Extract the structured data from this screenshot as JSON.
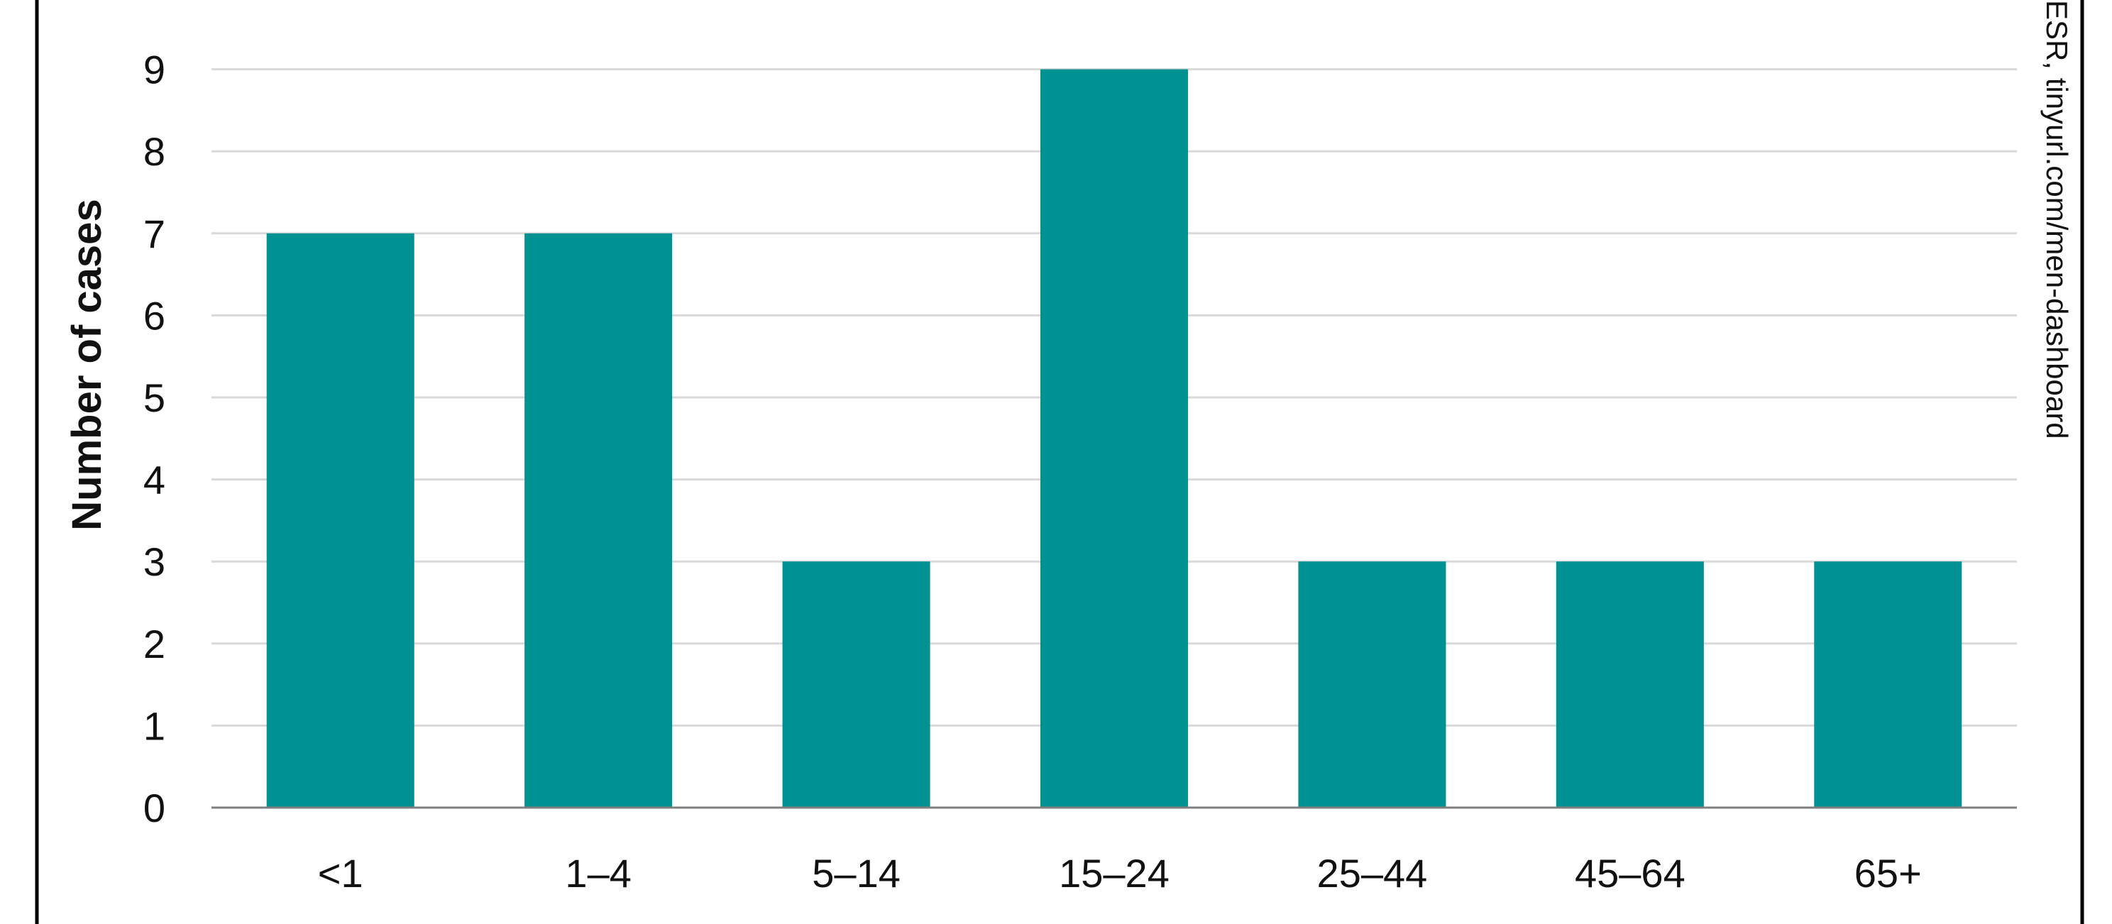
{
  "chart_data": {
    "type": "bar",
    "title": "",
    "xlabel": "",
    "ylabel": "Number of cases",
    "categories": [
      "<1",
      "1–4",
      "5–14",
      "15–24",
      "25–44",
      "45–64",
      "65+"
    ],
    "values": [
      7,
      7,
      3,
      9,
      3,
      3,
      3
    ],
    "yticks": [
      "0",
      "1",
      "2",
      "3",
      "4",
      "5",
      "6",
      "7",
      "8",
      "9"
    ],
    "ylim": [
      0,
      9.8
    ],
    "grid": true,
    "legend": "none",
    "bar_color": "#009292",
    "grid_color": "#d9d9d9",
    "axis_color": "#7f7f7f",
    "frame_color": "#000000",
    "source_note": "ESR, tinyurl.com/men-dashboard"
  }
}
